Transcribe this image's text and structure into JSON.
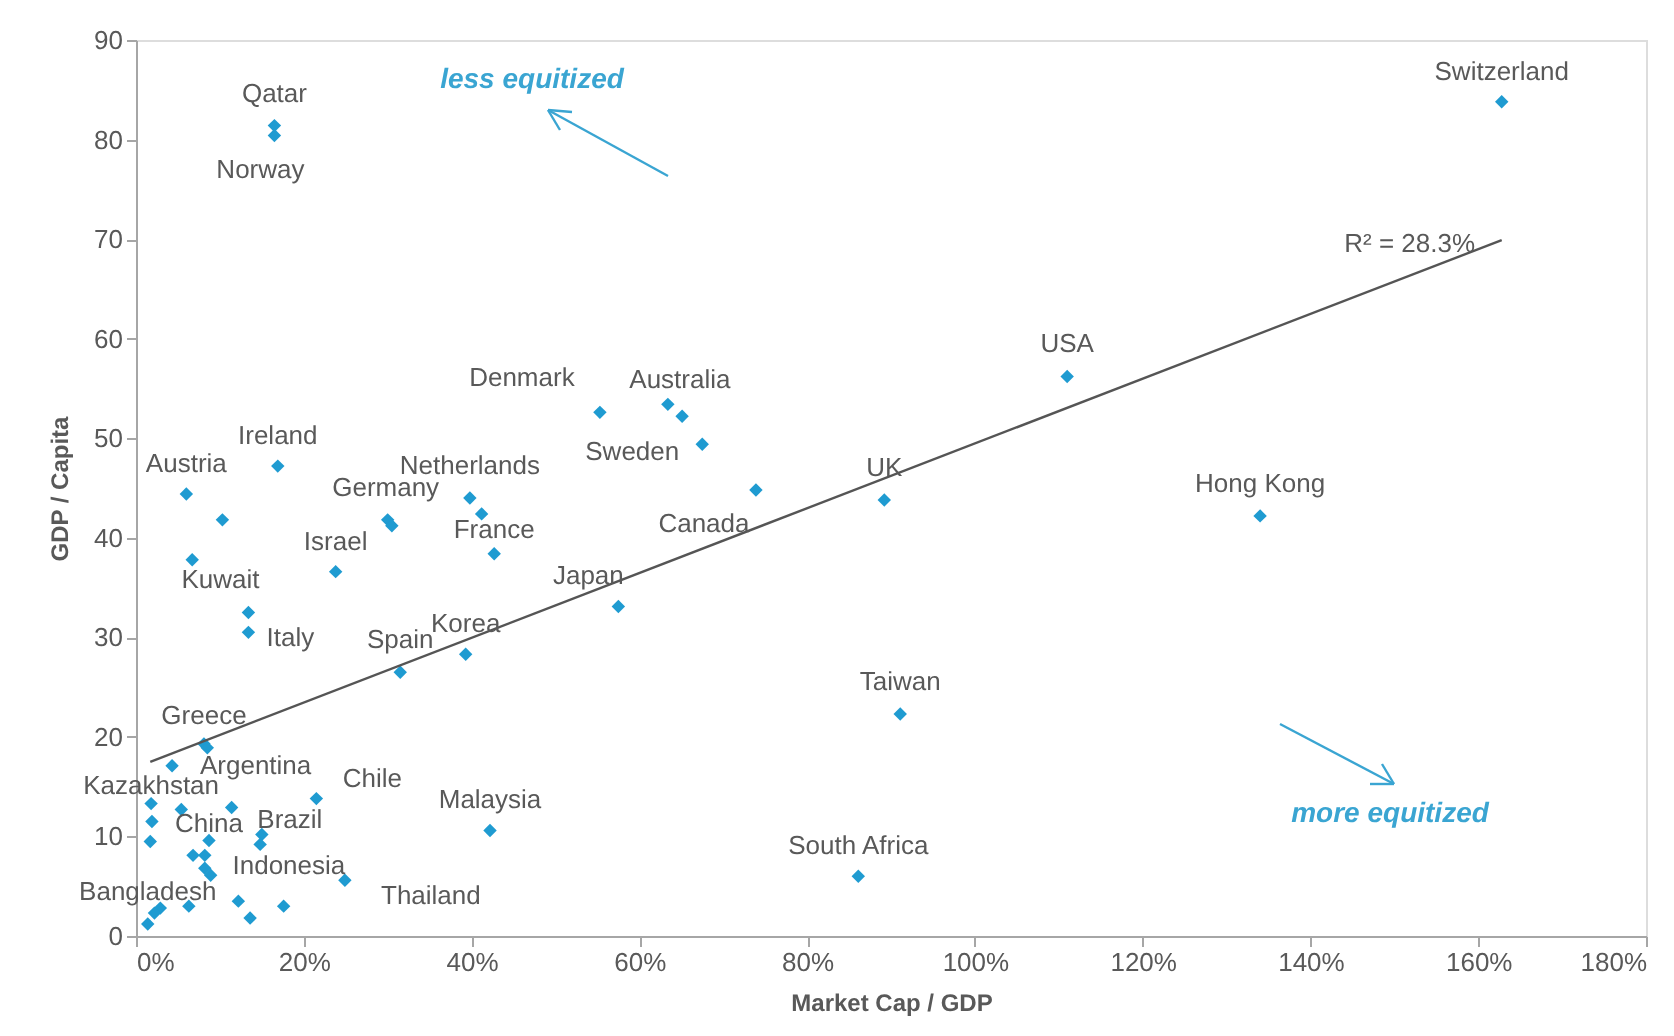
{
  "chart_data": {
    "type": "scatter",
    "xlabel": "Market Cap / GDP",
    "ylabel": "GDP / Capita",
    "xlim": [
      0,
      180
    ],
    "ylim": [
      0,
      90
    ],
    "xticks": [
      {
        "value": 0,
        "label": "0%"
      },
      {
        "value": 20,
        "label": "20%"
      },
      {
        "value": 40,
        "label": "40%"
      },
      {
        "value": 60,
        "label": "60%"
      },
      {
        "value": 80,
        "label": "80%"
      },
      {
        "value": 100,
        "label": "100%"
      },
      {
        "value": 120,
        "label": "120%"
      },
      {
        "value": 140,
        "label": "140%"
      },
      {
        "value": 160,
        "label": "160%"
      },
      {
        "value": 180,
        "label": "180%"
      }
    ],
    "yticks": [
      0,
      10,
      20,
      30,
      40,
      50,
      60,
      70,
      80,
      90
    ],
    "grid": false,
    "series": [
      {
        "color": "#1f9bd1",
        "marker": "diamond",
        "x": [
          162.8,
          16.5,
          16.5,
          111,
          55.3,
          63.4,
          65.1,
          67.5,
          73.9,
          89.2,
          134,
          91.1,
          86.1,
          42.2,
          57.5,
          42.7,
          39.8,
          41.2,
          30,
          30.5,
          23.8,
          16.9,
          6,
          10.3,
          6.7,
          13.4,
          13.4,
          39.3,
          31.5,
          8.1,
          8.5,
          4.3,
          1.8,
          1.9,
          1.7,
          5.4,
          11.4,
          8.7,
          6.8,
          8.2,
          8.2,
          8.9,
          15.0,
          14.8,
          21.5,
          24.9,
          17.6,
          13.6,
          12.2,
          6.3,
          2.9,
          2.2,
          1.4
        ],
        "values": [
          83.8,
          81.4,
          80.4,
          56.2,
          52.6,
          53.4,
          52.2,
          49.4,
          44.8,
          43.8,
          42.2,
          22.3,
          6,
          10.6,
          33.1,
          38.4,
          44,
          42.4,
          41.8,
          41.2,
          36.6,
          47.2,
          44.4,
          41.8,
          37.8,
          32.5,
          30.5,
          28.3,
          26.5,
          19.3,
          18.9,
          17.1,
          13.3,
          11.5,
          9.5,
          12.7,
          12.9,
          9.6,
          8.1,
          8.1,
          6.8,
          6.1,
          10.2,
          9.2,
          13.8,
          5.6,
          3.0,
          1.8,
          3.5,
          3.0,
          2.8,
          2.3,
          1.2
        ]
      },
      {
        "type": "line",
        "color": "#555555",
        "x": [
          1.7,
          162.8
        ],
        "values": [
          17.5,
          69.9
        ]
      }
    ],
    "annotations": [
      {
        "text": "Switzerland",
        "x": 162.8,
        "y": 83.8
      },
      {
        "text": "Qatar",
        "x": 16.5,
        "y": 81.4
      },
      {
        "text": "Norway",
        "x": 16.5,
        "y": 80.4
      },
      {
        "text": "USA",
        "x": 111,
        "y": 56.2
      },
      {
        "text": "Denmark",
        "x": 55.3,
        "y": 52.6
      },
      {
        "text": "Australia",
        "x": 63.4,
        "y": 53.4
      },
      {
        "text": "Sweden",
        "x": 67.5,
        "y": 49.4
      },
      {
        "text": "Canada",
        "x": 73.9,
        "y": 44.8
      },
      {
        "text": "UK",
        "x": 89.2,
        "y": 43.8
      },
      {
        "text": "Hong Kong",
        "x": 134,
        "y": 42.2
      },
      {
        "text": "Taiwan",
        "x": 91.1,
        "y": 22.3
      },
      {
        "text": "South Africa",
        "x": 86.1,
        "y": 6
      },
      {
        "text": "Malaysia",
        "x": 42.2,
        "y": 10.6
      },
      {
        "text": "Japan",
        "x": 57.5,
        "y": 33.1
      },
      {
        "text": "France",
        "x": 42.7,
        "y": 38.4
      },
      {
        "text": "Netherlands",
        "x": 39.8,
        "y": 44
      },
      {
        "text": "Germany",
        "x": 30,
        "y": 41.8
      },
      {
        "text": "Israel",
        "x": 23.8,
        "y": 36.6
      },
      {
        "text": "Ireland",
        "x": 16.9,
        "y": 47.2
      },
      {
        "text": "Austria",
        "x": 6,
        "y": 44.4
      },
      {
        "text": "Kuwait",
        "x": 13.4,
        "y": 32.5
      },
      {
        "text": "Italy",
        "x": 13.4,
        "y": 30.5
      },
      {
        "text": "Korea",
        "x": 39.3,
        "y": 28.3
      },
      {
        "text": "Spain",
        "x": 31.5,
        "y": 26.5
      },
      {
        "text": "Greece",
        "x": 8.1,
        "y": 19.3
      },
      {
        "text": "Argentina",
        "x": 11.4,
        "y": 12.9
      },
      {
        "text": "Chile",
        "x": 21.5,
        "y": 13.8
      },
      {
        "text": "Kazakhstan",
        "x": 1.8,
        "y": 13.3
      },
      {
        "text": "China",
        "x": 8.7,
        "y": 9.6
      },
      {
        "text": "Brazil",
        "x": 15.0,
        "y": 10.2
      },
      {
        "text": "Indonesia",
        "x": 24.9,
        "y": 5.6
      },
      {
        "text": "Thailand",
        "x": 24.9,
        "y": 5.6
      },
      {
        "text": "Bangladesh",
        "x": 1.4,
        "y": 1.2
      },
      {
        "text": "R² = 28.3%",
        "x": 162.8,
        "y": 69.9
      },
      "less equitized",
      "more equitized"
    ]
  }
}
